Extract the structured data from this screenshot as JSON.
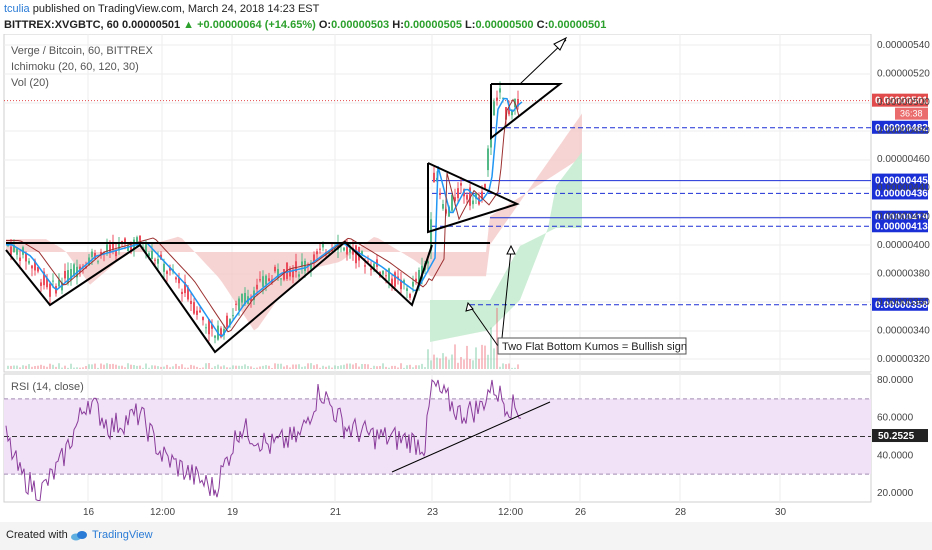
{
  "header": {
    "user": "tculia",
    "published": "published on TradingView.com, March 24, 2018 14:23 EST",
    "symbol": "BITTREX:XVGBTC, 60",
    "price": "0.00000501",
    "change_arrow": "▲",
    "change": "+0.00000064 (+14.65%)",
    "o_label": "O:",
    "o_value": "0.00000503",
    "h_label": "H:",
    "h_value": "0.00000505",
    "l_label": "L:",
    "l_value": "0.00000500",
    "c_label": "C:",
    "c_value": "0.00000501"
  },
  "legend": {
    "title": "Verge / Bitcoin, 60, BITTREX",
    "ichimoku": "Ichimoku (20, 60, 120, 30)",
    "vol": "Vol (20)",
    "rsi": "RSI (14, close)"
  },
  "annotation": "Two Flat Bottom Kumos = Bullish sign",
  "footer": {
    "created": "Created with",
    "brand": "TradingView",
    "logo_icon": "tradingview-logo-icon"
  },
  "colors": {
    "up": "#53b987",
    "down": "#eb4d5c",
    "tenkan": "#2196f3",
    "kijun": "#9c3030",
    "cloud_red": "#f4c6c6",
    "cloud_green": "#c8ecd2",
    "rsi_line": "#8a3c9b",
    "rsi_band": "#f1e2f7",
    "level_blue": "#1b2fd6",
    "current": "#e24b4b"
  },
  "chart_data": [
    {
      "type": "line",
      "y_axis_ticks": [
        "0.00000540",
        "0.00000520",
        "0.00000500",
        "0.00000480",
        "0.00000460",
        "0.00000440",
        "0.00000420",
        "0.00000400",
        "0.00000380",
        "0.00000360",
        "0.00000340",
        "0.00000320"
      ],
      "x_axis_ticks": [
        "16",
        "12:00",
        "19",
        "21",
        "23",
        "12:00",
        "26",
        "28",
        "30"
      ],
      "current_price_label": "0.00000501",
      "countdown": "36:38",
      "price_levels": [
        {
          "label": "0.00000482",
          "value": 4.82e-06,
          "style": "dashed"
        },
        {
          "label": "0.00000445",
          "value": 4.45e-06,
          "style": "solid"
        },
        {
          "label": "0.00000436",
          "value": 4.36e-06,
          "style": "dashed"
        },
        {
          "label": "0.00000419",
          "value": 4.19e-06,
          "style": "solid"
        },
        {
          "label": "0.00000413",
          "value": 4.13e-06,
          "style": "dashed"
        },
        {
          "label": "0.00000358",
          "value": 3.58e-06,
          "style": "dashed"
        }
      ],
      "ylim": [
        3.08e-06,
        5.45e-06
      ]
    },
    {
      "type": "line",
      "name": "RSI (14, close)",
      "y_axis_ticks": [
        "80.0000",
        "60.0000",
        "40.0000",
        "20.0000"
      ],
      "current_value_label": "50.2525",
      "upper_band": 70,
      "lower_band": 30,
      "mid": 50,
      "ylim": [
        14,
        82
      ]
    }
  ]
}
